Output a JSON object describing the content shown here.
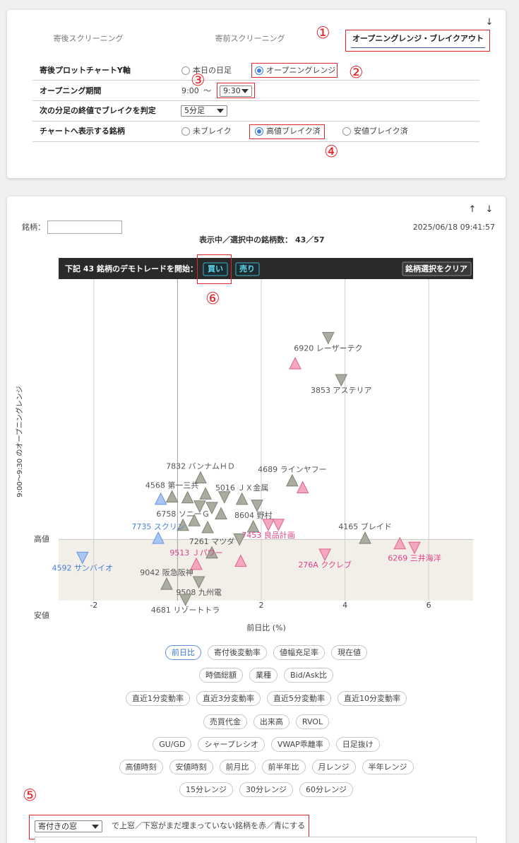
{
  "settings_panel": {
    "scroll_arrow": "↓",
    "tabs": [
      "寄後スクリーニング",
      "寄前スクリーニング",
      "オープニングレンジ・ブレイクアウト"
    ],
    "active_tab": 2,
    "rows": [
      {
        "label": "寄後プロットチャートY軸",
        "options": [
          "本日の日足",
          "オープニングレンジ"
        ],
        "selected": 1
      },
      {
        "label": "オープニング期間",
        "start": "9:00",
        "separator": "〜",
        "select": "9:30"
      },
      {
        "label": "次の分足の終値でブレイクを判定",
        "select": "5分足"
      },
      {
        "label": "チャートへ表示する銘柄",
        "options": [
          "未ブレイク",
          "高値ブレイク済",
          "安値ブレイク済"
        ],
        "selected": 1
      }
    ],
    "markers": [
      "①",
      "②",
      "③",
      "④"
    ]
  },
  "chart_panel": {
    "scroll_arrows": [
      "↑",
      "↓"
    ],
    "search_label": "銘柄：",
    "timestamp": "2025/06/18 09:41:57",
    "count_label": "表示中／選択中の銘柄数：",
    "count": "43／57",
    "toolbar": {
      "prompt": "下記 43 銘柄のデモトレードを開始：",
      "buy": "買い",
      "sell": "売り",
      "clear": "銘柄選択をクリア"
    },
    "marker": "⑥"
  },
  "chart_data": {
    "type": "scatter",
    "x_label": "前日比 (%)",
    "y_label": "9:00～9:30 のオープニングレンジ",
    "xlim": [
      -2.84,
      7.06
    ],
    "ylim": [
      0.2,
      4.4
    ],
    "xticks": [
      -2,
      2,
      4,
      6
    ],
    "yticks": [
      {
        "value": 1,
        "label": "高値"
      },
      {
        "value": 0,
        "label": "安値"
      }
    ],
    "grid": true,
    "series": [
      {
        "marker": "down",
        "color": "#a9ac9f",
        "edge": "#7f8274",
        "text_color": "#555555",
        "x": [
          3.6,
          3.91,
          1.12,
          1.9,
          0.53,
          0.82,
          1.48,
          0.51,
          0.19
        ],
        "y": [
          3.63,
          3.08,
          1.55,
          1.44,
          1.43,
          1.41,
          1.0,
          0.44,
          0.21
        ],
        "labels": [
          "6920 レーザーテク",
          "3853 アステリア",
          null,
          null,
          null,
          null,
          null,
          "9508 九州電",
          "4681 リゾートトラ"
        ]
      },
      {
        "marker": "up",
        "color": "#a9ac9f",
        "edge": "#7f8274",
        "text_color": "#555555",
        "x": [
          0.55,
          -0.13,
          0.67,
          0.24,
          1.54,
          2.74,
          1.04,
          0.13,
          0.4,
          0.72,
          1.81,
          4.48,
          0.82,
          -0.26
        ],
        "y": [
          1.81,
          1.56,
          1.6,
          1.55,
          1.53,
          1.77,
          1.34,
          1.19,
          1.25,
          1.16,
          1.17,
          1.02,
          0.83,
          0.42
        ],
        "labels": [
          "7832 バンナムＨＤ",
          "4568 第一三共",
          null,
          null,
          "5016 ＪＸ金属",
          "4689 ラインヤフー",
          null,
          "6758 ソニーＧ",
          null,
          null,
          "8604 野村",
          "4165 ブレイド",
          "7261 マツダ",
          "9042 阪急阪神"
        ]
      },
      {
        "marker": "up",
        "color": "#f4a7c0",
        "edge": "#e0638d",
        "text_color": "#e0408a",
        "x": [
          2.81,
          2.99,
          0.45,
          1.51,
          5.31
        ],
        "y": [
          3.3,
          1.68,
          0.68,
          0.72,
          0.95
        ],
        "labels": [
          null,
          null,
          "9513 Ｊパワー",
          null,
          null
        ]
      },
      {
        "marker": "down",
        "color": "#f4a7c0",
        "edge": "#e0638d",
        "text_color": "#e0408a",
        "x": [
          2.17,
          2.41,
          3.52,
          5.66
        ],
        "y": [
          1.19,
          1.19,
          0.8,
          0.89
        ],
        "labels": [
          "7453 良品計画",
          null,
          "276A ククレブ",
          "6269 三井海洋"
        ]
      },
      {
        "marker": "up",
        "color": "#a9c5f2",
        "edge": "#6a98de",
        "text_color": "#4a7fd6",
        "x": [
          -0.4,
          -0.46
        ],
        "y": [
          1.53,
          1.02
        ],
        "labels": [
          null,
          "7735 スクリン"
        ]
      },
      {
        "marker": "down",
        "color": "#a9c5f2",
        "edge": "#6a98de",
        "text_color": "#4a7fd6",
        "x": [
          -2.27
        ],
        "y": [
          0.76
        ],
        "labels": [
          "4592 サンバイオ"
        ]
      }
    ]
  },
  "metric_buttons": {
    "rows": [
      [
        "前日比",
        "寄付後変動率",
        "値幅充足率",
        "現在値"
      ],
      [
        "時価総額",
        "業種",
        "Bid/Ask比"
      ],
      [
        "直近1分変動率",
        "直近3分変動率",
        "直近5分変動率",
        "直近10分変動率"
      ],
      [
        "売買代金",
        "出来高",
        "RVOL"
      ],
      [
        "GU/GD",
        "シャープレシオ",
        "VWAP乖離率",
        "日足抜け"
      ],
      [
        "高値時刻",
        "安値時刻",
        "前月比",
        "前半年比",
        "月レンジ",
        "半年レンジ"
      ],
      [
        "15分レンジ",
        "30分レンジ",
        "60分レンジ"
      ]
    ],
    "selected": {
      "row": 0,
      "index": 0
    }
  },
  "gap_filter": {
    "marker": "⑤",
    "select": "寄付きの窓",
    "text": "で上窓／下窓がまだ埋まっていない銘柄を赤／青にする"
  }
}
